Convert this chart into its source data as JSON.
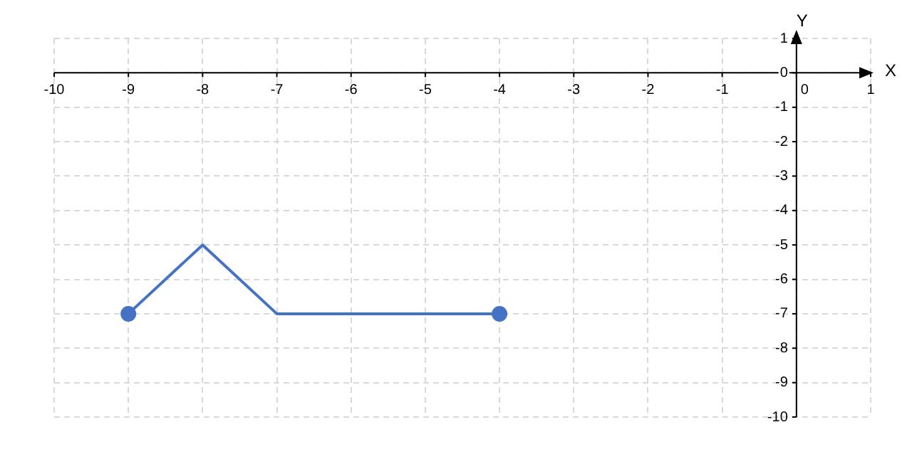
{
  "chart_data": {
    "type": "line",
    "xlabel": "X",
    "ylabel": "Y",
    "x": [
      -9,
      -8,
      -7,
      -4
    ],
    "series": [
      {
        "color": "#4472c4",
        "values": [
          -7,
          -5,
          -7,
          -7
        ]
      }
    ],
    "xlim": [
      -10,
      1
    ],
    "xticks": [
      -10,
      -9,
      -8,
      -7,
      -6,
      -5,
      -4,
      -3,
      -2,
      -1,
      0,
      1
    ],
    "ylim": [
      -10,
      1
    ],
    "yticks": [
      -10,
      -9,
      -8,
      -7,
      -6,
      -5,
      -4,
      -3,
      -2,
      -1,
      0,
      1
    ],
    "grid": true,
    "legend": false,
    "marker": "circle",
    "line_style": "solid"
  }
}
